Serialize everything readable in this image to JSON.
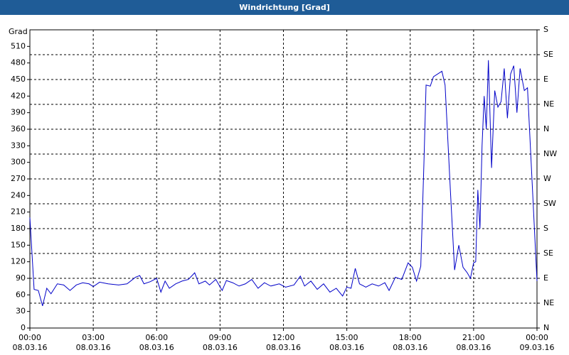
{
  "chart_data": {
    "type": "line",
    "title": "Windrichtung [Grad]",
    "y_label": "Grad",
    "series": [
      {
        "name": "Windrichtung",
        "color": "#0000c8",
        "x": [
          0,
          0.2,
          0.4,
          0.6,
          0.8,
          1.0,
          1.3,
          1.6,
          1.9,
          2.2,
          2.5,
          2.8,
          3.0,
          3.3,
          3.7,
          4.2,
          4.6,
          5.0,
          5.2,
          5.4,
          5.7,
          6.0,
          6.2,
          6.4,
          6.6,
          6.9,
          7.2,
          7.5,
          7.8,
          8.0,
          8.3,
          8.5,
          8.8,
          9.1,
          9.3,
          9.6,
          9.9,
          10.2,
          10.5,
          10.8,
          11.1,
          11.4,
          11.8,
          12.1,
          12.5,
          12.8,
          13.0,
          13.3,
          13.6,
          13.9,
          14.2,
          14.5,
          14.8,
          15.0,
          15.2,
          15.4,
          15.6,
          15.9,
          16.2,
          16.5,
          16.8,
          17.0,
          17.3,
          17.6,
          17.9,
          18.1,
          18.3,
          18.5,
          18.65,
          18.75,
          18.95,
          19.1,
          19.5,
          19.65,
          19.9,
          20.1,
          20.3,
          20.5,
          20.7,
          20.85,
          21.0,
          21.1,
          21.2,
          21.3,
          21.4,
          21.5,
          21.6,
          21.7,
          21.85,
          22.0,
          22.15,
          22.3,
          22.45,
          22.6,
          22.75,
          22.9,
          23.05,
          23.2,
          23.4,
          23.55,
          24.0
        ],
        "values": [
          200,
          70,
          68,
          40,
          72,
          62,
          80,
          78,
          68,
          78,
          82,
          80,
          75,
          83,
          80,
          78,
          80,
          92,
          95,
          80,
          84,
          90,
          65,
          85,
          72,
          80,
          85,
          88,
          100,
          80,
          85,
          78,
          88,
          68,
          86,
          82,
          76,
          80,
          88,
          72,
          82,
          76,
          80,
          74,
          78,
          94,
          76,
          85,
          70,
          80,
          65,
          72,
          58,
          74,
          72,
          108,
          80,
          74,
          80,
          76,
          82,
          68,
          92,
          88,
          118,
          110,
          85,
          112,
          300,
          440,
          438,
          455,
          465,
          440,
          250,
          105,
          150,
          110,
          100,
          90,
          118,
          120,
          250,
          180,
          330,
          420,
          360,
          485,
          290,
          430,
          400,
          410,
          470,
          380,
          460,
          475,
          390,
          470,
          430,
          435,
          85
        ]
      }
    ],
    "xlim": [
      0,
      24
    ],
    "xticks": [
      {
        "value": 0,
        "label": "00:00"
      },
      {
        "value": 3,
        "label": "03:00"
      },
      {
        "value": 6,
        "label": "06:00"
      },
      {
        "value": 9,
        "label": "09:00"
      },
      {
        "value": 12,
        "label": "12:00"
      },
      {
        "value": 15,
        "label": "15:00"
      },
      {
        "value": 18,
        "label": "18:00"
      },
      {
        "value": 21,
        "label": "21:00"
      },
      {
        "value": 24,
        "label": "00:00"
      }
    ],
    "xtick_dates": [
      "08.03.16",
      "08.03.16",
      "08.03.16",
      "08.03.16",
      "08.03.16",
      "08.03.16",
      "08.03.16",
      "08.03.16",
      "09.03.16"
    ],
    "ylim": [
      0,
      540
    ],
    "yticks": [
      0,
      30,
      60,
      90,
      120,
      150,
      180,
      210,
      240,
      270,
      300,
      330,
      360,
      390,
      420,
      450,
      480,
      510
    ],
    "y2lim": [
      0,
      540
    ],
    "y2ticks": [
      {
        "value": 0,
        "label": "N"
      },
      {
        "value": 45,
        "label": "NE"
      },
      {
        "value": 90,
        "label": "E"
      },
      {
        "value": 135,
        "label": "SE"
      },
      {
        "value": 180,
        "label": "S"
      },
      {
        "value": 225,
        "label": "SW"
      },
      {
        "value": 270,
        "label": "W"
      },
      {
        "value": 315,
        "label": "NW"
      },
      {
        "value": 360,
        "label": "N"
      },
      {
        "value": 405,
        "label": "NE"
      },
      {
        "value": 450,
        "label": "E"
      },
      {
        "value": 495,
        "label": "SE"
      },
      {
        "value": 540,
        "label": "S"
      }
    ],
    "grid": true
  }
}
